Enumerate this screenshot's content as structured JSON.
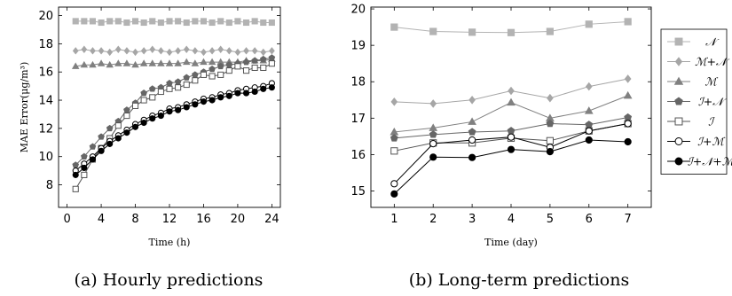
{
  "chart_data": [
    {
      "type": "line",
      "caption": "(a) Hourly predictions",
      "xlabel": "Time (h)",
      "ylabel": "MAE Error(μg/m³)",
      "xlim": [
        -1,
        25
      ],
      "ylim": [
        6.4,
        20.6
      ],
      "xticks": [
        0,
        4,
        8,
        12,
        16,
        20,
        24
      ],
      "yticks": [
        8,
        10,
        12,
        14,
        16,
        18,
        20
      ],
      "grid": false,
      "x": [
        1,
        2,
        3,
        4,
        5,
        6,
        7,
        8,
        9,
        10,
        11,
        12,
        13,
        14,
        15,
        16,
        17,
        18,
        19,
        20,
        21,
        22,
        23,
        24
      ],
      "series": [
        {
          "name": "𝒩",
          "marker": "square",
          "color": "#b3b3b3",
          "values": [
            19.6,
            19.6,
            19.6,
            19.5,
            19.6,
            19.6,
            19.5,
            19.6,
            19.5,
            19.6,
            19.5,
            19.6,
            19.6,
            19.5,
            19.6,
            19.6,
            19.5,
            19.6,
            19.5,
            19.6,
            19.5,
            19.6,
            19.5,
            19.5
          ]
        },
        {
          "name": "ℳ+𝒩",
          "marker": "diamond",
          "color": "#a6a6a6",
          "values": [
            17.5,
            17.6,
            17.5,
            17.5,
            17.4,
            17.6,
            17.5,
            17.4,
            17.5,
            17.6,
            17.5,
            17.4,
            17.5,
            17.6,
            17.5,
            17.4,
            17.5,
            17.6,
            17.5,
            17.4,
            17.5,
            17.5,
            17.4,
            17.5
          ]
        },
        {
          "name": "ℳ",
          "marker": "triangle",
          "color": "#808080",
          "values": [
            16.4,
            16.5,
            16.5,
            16.6,
            16.5,
            16.6,
            16.6,
            16.5,
            16.6,
            16.6,
            16.6,
            16.6,
            16.6,
            16.7,
            16.6,
            16.7,
            16.7,
            16.7,
            16.7,
            16.7,
            16.8,
            16.8,
            16.8,
            16.9
          ]
        },
        {
          "name": "ℐ+𝒩",
          "marker": "pentagon",
          "color": "#666666",
          "values": [
            9.4,
            10.0,
            10.7,
            11.4,
            12.0,
            12.5,
            13.3,
            13.8,
            14.5,
            14.8,
            14.9,
            15.2,
            15.3,
            15.6,
            15.8,
            16.0,
            16.2,
            16.4,
            16.5,
            16.6,
            16.7,
            16.8,
            16.9,
            17.0
          ]
        },
        {
          "name": "ℐ",
          "marker": "square-open",
          "color": "#555555",
          "values": [
            7.7,
            8.7,
            9.8,
            10.6,
            11.3,
            12.2,
            12.9,
            13.6,
            14.0,
            14.2,
            14.6,
            14.8,
            14.9,
            15.1,
            15.4,
            15.8,
            15.7,
            15.8,
            16.1,
            16.4,
            16.1,
            16.3,
            16.3,
            16.6
          ]
        },
        {
          "name": "ℐ+ℳ",
          "marker": "circle-open",
          "color": "#000000",
          "values": [
            9.0,
            9.5,
            10.0,
            10.6,
            11.1,
            11.5,
            11.9,
            12.3,
            12.6,
            12.9,
            13.1,
            13.4,
            13.5,
            13.7,
            13.9,
            14.1,
            14.2,
            14.4,
            14.5,
            14.7,
            14.8,
            14.9,
            15.0,
            15.2
          ]
        },
        {
          "name": "ℐ+𝒩+ℳ",
          "marker": "circle",
          "color": "#000000",
          "values": [
            8.7,
            9.2,
            9.8,
            10.4,
            10.9,
            11.3,
            11.7,
            12.1,
            12.4,
            12.7,
            12.9,
            13.2,
            13.3,
            13.5,
            13.7,
            13.9,
            14.0,
            14.2,
            14.3,
            14.5,
            14.5,
            14.6,
            14.8,
            14.9
          ]
        }
      ]
    },
    {
      "type": "line",
      "caption": "(b) Long-term predictions",
      "xlabel": "Time (day)",
      "ylabel": "",
      "xlim": [
        0.4,
        7.6
      ],
      "ylim": [
        14.55,
        20.05
      ],
      "xticks": [
        1,
        2,
        3,
        4,
        5,
        6,
        7
      ],
      "yticks": [
        15,
        16,
        17,
        18,
        19,
        20
      ],
      "grid": false,
      "legend": "right",
      "x": [
        1,
        2,
        3,
        4,
        5,
        6,
        7
      ],
      "series": [
        {
          "name": "𝒩",
          "marker": "square",
          "color": "#b3b3b3",
          "values": [
            19.5,
            19.38,
            19.36,
            19.35,
            19.38,
            19.58,
            19.65
          ]
        },
        {
          "name": "ℳ+𝒩",
          "marker": "diamond",
          "color": "#a6a6a6",
          "values": [
            17.45,
            17.4,
            17.5,
            17.75,
            17.55,
            17.87,
            18.08
          ]
        },
        {
          "name": "ℳ",
          "marker": "triangle",
          "color": "#808080",
          "values": [
            16.62,
            16.73,
            16.9,
            17.43,
            17.0,
            17.2,
            17.62
          ]
        },
        {
          "name": "ℐ+𝒩",
          "marker": "pentagon",
          "color": "#666666",
          "values": [
            16.45,
            16.55,
            16.62,
            16.65,
            16.85,
            16.82,
            17.02
          ]
        },
        {
          "name": "ℐ",
          "marker": "square-open",
          "color": "#555555",
          "values": [
            16.1,
            16.32,
            16.32,
            16.45,
            16.38,
            16.65,
            16.85
          ]
        },
        {
          "name": "ℐ+ℳ",
          "marker": "circle-open",
          "color": "#000000",
          "values": [
            15.2,
            16.3,
            16.4,
            16.48,
            16.2,
            16.65,
            16.85
          ]
        },
        {
          "name": "ℐ+𝒩+ℳ",
          "marker": "circle",
          "color": "#000000",
          "values": [
            14.92,
            15.93,
            15.92,
            16.14,
            16.08,
            16.4,
            16.35
          ]
        }
      ]
    }
  ]
}
